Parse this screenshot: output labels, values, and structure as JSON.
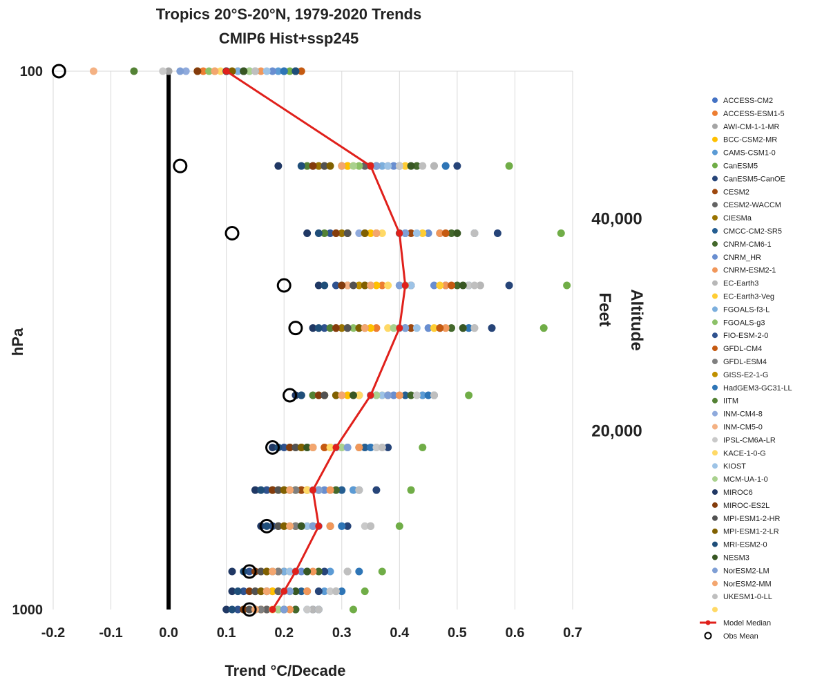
{
  "chart_data": {
    "type": "scatter",
    "title": "Tropics 20°S-20°N, 1979-2020 Trends",
    "subtitle": "CMIP6 Hist+ssp245",
    "xlabel": "Trend °C/Decade",
    "ylabel": "hPa",
    "xlim": [
      -0.2,
      0.7
    ],
    "x_ticks": [
      "-0.2",
      "-0.1",
      "0.0",
      "0.1",
      "0.2",
      "0.3",
      "0.4",
      "0.5",
      "0.6",
      "0.7"
    ],
    "y_tick_labels": [
      "100",
      "1000"
    ],
    "y_scale": "log, inverted",
    "grid": "vertical",
    "zero_line": true,
    "secondary_axis": {
      "label_line1": "Altitude",
      "label_line2": "Feet",
      "ticks": [
        {
          "label": "40,000",
          "pressure": 188
        },
        {
          "label": "20,000",
          "pressure": 466
        }
      ]
    },
    "levels": [
      100,
      150,
      200,
      250,
      300,
      400,
      500,
      600,
      700,
      850,
      925,
      1000
    ],
    "model_median": [
      0.1,
      0.35,
      0.4,
      0.41,
      0.4,
      0.35,
      0.29,
      0.25,
      0.26,
      0.22,
      0.2,
      0.18
    ],
    "obs_mean": [
      -0.19,
      0.02,
      0.11,
      0.2,
      0.22,
      0.21,
      0.18,
      null,
      0.17,
      0.14,
      null,
      0.14
    ],
    "level_min": [
      -0.13,
      0.19,
      0.24,
      0.26,
      0.25,
      0.22,
      0.18,
      0.15,
      0.16,
      0.11,
      0.11,
      0.1
    ],
    "level_max": [
      0.23,
      0.59,
      0.68,
      0.69,
      0.65,
      0.52,
      0.44,
      0.42,
      0.4,
      0.37,
      0.34,
      0.32
    ],
    "series": [
      {
        "name": "ACCESS-CM2",
        "color": "#4472C4",
        "values": [
          0.14,
          0.36,
          0.41,
          0.42,
          0.41,
          0.36,
          0.29,
          0.26,
          0.25,
          0.22,
          0.21,
          0.19
        ]
      },
      {
        "name": "ACCESS-ESM1-5",
        "color": "#ED7D31",
        "values": [
          0.06,
          0.31,
          0.36,
          0.37,
          0.36,
          0.32,
          0.27,
          0.23,
          0.24,
          0.2,
          0.18,
          0.16
        ]
      },
      {
        "name": "AWI-CM-1-1-MR",
        "color": "#A5A5A5",
        "values": [
          0.0,
          0.46,
          0.53,
          0.54,
          0.52,
          0.44,
          0.36,
          0.32,
          0.35,
          0.31,
          0.29,
          0.26
        ]
      },
      {
        "name": "BCC-CSM2-MR",
        "color": "#FFC000",
        "values": [
          0.08,
          0.31,
          0.35,
          0.36,
          0.35,
          0.31,
          0.25,
          0.22,
          0.22,
          0.19,
          0.18,
          0.16
        ]
      },
      {
        "name": "CAMS-CSM1-0",
        "color": "#5B9BD5",
        "values": [
          0.19,
          0.48,
          0.53,
          0.52,
          0.51,
          0.44,
          0.34,
          0.32,
          0.3,
          0.28,
          0.27,
          0.24
        ]
      },
      {
        "name": "CanESM5",
        "color": "#70AD47",
        "values": [
          0.21,
          0.59,
          0.68,
          0.69,
          0.65,
          0.52,
          0.44,
          0.42,
          0.4,
          0.37,
          0.34,
          0.32
        ]
      },
      {
        "name": "CanESM5-CanOE",
        "color": "#264478",
        "values": [
          0.22,
          0.5,
          0.57,
          0.59,
          0.56,
          0.46,
          0.38,
          0.36,
          0.31,
          0.27,
          0.26,
          0.25
        ]
      },
      {
        "name": "CESM2",
        "color": "#9E480E",
        "values": [
          0.12,
          0.35,
          0.42,
          0.42,
          0.42,
          0.33,
          0.28,
          0.23,
          0.25,
          0.21,
          0.19,
          0.17
        ]
      },
      {
        "name": "CESM2-WACCM",
        "color": "#636363",
        "values": [
          0.13,
          0.34,
          0.4,
          0.41,
          0.4,
          0.35,
          0.29,
          0.24,
          0.23,
          0.2,
          0.19,
          0.17
        ]
      },
      {
        "name": "CIESMa",
        "color": "#997300",
        "values": [
          0.1,
          0.26,
          0.3,
          0.31,
          0.3,
          0.27,
          0.23,
          0.2,
          0.22,
          0.18,
          0.16,
          0.14
        ]
      },
      {
        "name": "CMCC-CM2-SR5",
        "color": "#255E91",
        "values": [
          0.2,
          0.4,
          0.47,
          0.48,
          0.47,
          0.41,
          0.34,
          0.3,
          0.28,
          0.24,
          0.23,
          0.22
        ]
      },
      {
        "name": "CNRM-CM6-1",
        "color": "#43682B",
        "values": [
          0.22,
          0.43,
          0.49,
          0.5,
          0.49,
          0.42,
          0.33,
          0.29,
          0.28,
          0.26,
          0.24,
          0.22
        ]
      },
      {
        "name": "CNRM_HR",
        "color": "#698ED0",
        "values": [
          0.18,
          0.39,
          0.45,
          0.46,
          0.45,
          0.39,
          0.31,
          0.27,
          0.26,
          0.23,
          0.22,
          0.2
        ]
      },
      {
        "name": "CNRM-ESM2-1",
        "color": "#F1975A",
        "values": [
          0.16,
          0.38,
          0.47,
          0.48,
          0.48,
          0.4,
          0.33,
          0.28,
          0.28,
          0.25,
          0.24,
          0.21
        ]
      },
      {
        "name": "EC-Earth3",
        "color": "#B7B7B7",
        "values": [
          0.15,
          0.46,
          0.53,
          0.54,
          0.53,
          0.46,
          0.37,
          0.33,
          0.35,
          0.31,
          0.29,
          0.25
        ]
      },
      {
        "name": "EC-Earth3-Veg",
        "color": "#FFCD33",
        "values": [
          0.11,
          0.41,
          0.44,
          0.47,
          0.46,
          0.37,
          0.3,
          0.26,
          0.25,
          0.22,
          0.21,
          0.19
        ]
      },
      {
        "name": "FGOALS-f3-L",
        "color": "#7CAFDD",
        "values": [
          0.12,
          0.37,
          0.41,
          0.4,
          0.4,
          0.35,
          0.29,
          0.24,
          0.23,
          0.2,
          0.2,
          0.18
        ]
      },
      {
        "name": "FGOALS-g3",
        "color": "#8CC168",
        "values": [
          0.07,
          0.33,
          0.31,
          0.34,
          0.32,
          0.29,
          0.24,
          0.22,
          0.21,
          0.18,
          0.17,
          0.15
        ]
      },
      {
        "name": "FIO-ESM-2-0",
        "color": "#2F528F",
        "values": [
          0.13,
          0.25,
          0.28,
          0.29,
          0.27,
          0.23,
          0.2,
          0.17,
          0.18,
          0.14,
          0.13,
          0.12
        ]
      },
      {
        "name": "GFDL-CM4",
        "color": "#C55A11",
        "values": [
          0.23,
          0.36,
          0.48,
          0.49,
          0.47,
          0.38,
          0.27,
          0.24,
          0.22,
          0.19,
          0.17,
          0.16
        ]
      },
      {
        "name": "GFDL-ESM4",
        "color": "#7F7F7F",
        "values": [
          0.15,
          0.3,
          0.34,
          0.35,
          0.34,
          0.3,
          0.25,
          0.22,
          0.22,
          0.19,
          0.17,
          0.16
        ]
      },
      {
        "name": "GISS-E2-1-G",
        "color": "#BF9000",
        "values": [
          0.05,
          0.27,
          0.31,
          0.33,
          0.31,
          0.27,
          0.22,
          0.19,
          0.2,
          0.17,
          0.15,
          0.14
        ]
      },
      {
        "name": "HadGEM3-GC31-LL",
        "color": "#2E75B6",
        "values": [
          0.2,
          0.48,
          0.53,
          0.52,
          0.52,
          0.45,
          0.35,
          0.33,
          0.3,
          0.33,
          0.3,
          0.26
        ]
      },
      {
        "name": "IITM",
        "color": "#548235",
        "values": [
          -0.06,
          0.24,
          0.27,
          0.3,
          0.28,
          0.25,
          0.21,
          0.18,
          0.19,
          0.16,
          0.15,
          0.13
        ]
      },
      {
        "name": "INM-CM4-8",
        "color": "#8FAADC",
        "values": [
          0.03,
          0.3,
          0.33,
          0.34,
          0.33,
          0.29,
          0.24,
          0.21,
          0.21,
          0.18,
          0.17,
          0.15
        ]
      },
      {
        "name": "INM-CM5-0",
        "color": "#F4B183",
        "values": [
          -0.13,
          0.27,
          0.29,
          0.31,
          0.29,
          0.26,
          0.22,
          0.19,
          0.2,
          0.16,
          0.15,
          0.14
        ]
      },
      {
        "name": "IPSL-CM6A-LR",
        "color": "#C9C9C9",
        "values": [
          -0.01,
          0.4,
          0.53,
          0.52,
          0.51,
          0.43,
          0.36,
          0.33,
          0.34,
          0.31,
          0.28,
          0.24
        ]
      },
      {
        "name": "KACE-1-0-G",
        "color": "#FFD966",
        "values": [
          0.09,
          0.32,
          0.37,
          0.38,
          0.38,
          0.33,
          0.28,
          0.24,
          0.24,
          0.21,
          0.2,
          0.18
        ]
      },
      {
        "name": "KIOST",
        "color": "#9DC3E6",
        "values": [
          0.17,
          0.38,
          0.43,
          0.42,
          0.43,
          0.37,
          0.3,
          0.25,
          0.24,
          0.21,
          0.2,
          0.19
        ]
      },
      {
        "name": "MCM-UA-1-0",
        "color": "#A9D18E",
        "values": [
          0.14,
          0.32,
          0.36,
          0.41,
          0.39,
          0.36,
          0.3,
          0.26,
          0.25,
          0.22,
          0.21,
          0.19
        ]
      },
      {
        "name": "MIROC6",
        "color": "#203864",
        "values": [
          0.1,
          0.19,
          0.24,
          0.26,
          0.25,
          0.22,
          0.18,
          0.15,
          0.16,
          0.11,
          0.11,
          0.1
        ]
      },
      {
        "name": "MIROC-ES2L",
        "color": "#843C0C",
        "values": [
          0.05,
          0.25,
          0.29,
          0.3,
          0.29,
          0.26,
          0.21,
          0.18,
          0.19,
          0.15,
          0.14,
          0.13
        ]
      },
      {
        "name": "MPI-ESM1-2-HR",
        "color": "#525252",
        "values": [
          0.13,
          0.27,
          0.31,
          0.32,
          0.31,
          0.27,
          0.22,
          0.19,
          0.19,
          0.16,
          0.15,
          0.14
        ]
      },
      {
        "name": "MPI-ESM1-2-LR",
        "color": "#806000",
        "values": [
          0.11,
          0.28,
          0.34,
          0.34,
          0.33,
          0.29,
          0.23,
          0.2,
          0.2,
          0.17,
          0.16,
          0.15
        ]
      },
      {
        "name": "MRI-ESM2-0",
        "color": "#1F4E79",
        "values": [
          0.22,
          0.23,
          0.26,
          0.27,
          0.26,
          0.23,
          0.19,
          0.16,
          0.17,
          0.13,
          0.12,
          0.11
        ]
      },
      {
        "name": "NESM3",
        "color": "#385723",
        "values": [
          0.13,
          0.42,
          0.5,
          0.51,
          0.51,
          0.32,
          0.24,
          0.21,
          0.23,
          0.24,
          0.22,
          0.2
        ]
      },
      {
        "name": "NorESM2-LM",
        "color": "#7F9FD5",
        "values": [
          0.02,
          0.36,
          0.41,
          0.4,
          0.41,
          0.38,
          0.31,
          0.26,
          0.25,
          0.22,
          0.21,
          0.2
        ]
      },
      {
        "name": "NorESM2-MM",
        "color": "#F3A66F",
        "values": [
          0.08,
          0.3,
          0.36,
          0.35,
          0.34,
          0.3,
          0.25,
          0.21,
          0.21,
          0.18,
          0.17,
          0.15
        ]
      },
      {
        "name": "UKESM1-0-LL",
        "color": "#BFBFBF",
        "values": [
          0.15,
          0.44,
          0.53,
          0.53,
          0.53,
          0.46,
          0.37,
          0.33,
          0.35,
          0.31,
          0.29,
          0.26
        ]
      },
      {
        "name": "",
        "color": "#FFD966",
        "values": []
      }
    ],
    "median_series_name": "Model Median",
    "obs_series_name": "Obs Mean",
    "median_color": "#E0201B"
  }
}
